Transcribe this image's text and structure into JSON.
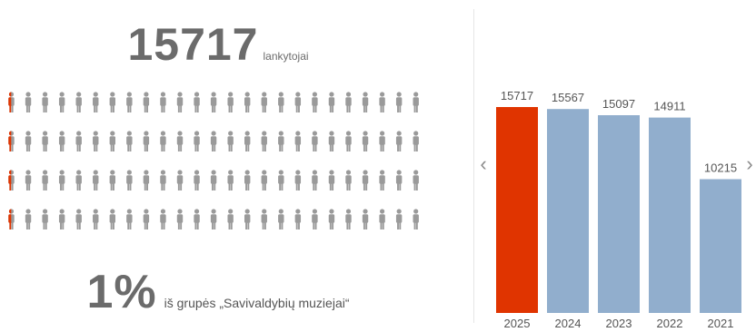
{
  "summary": {
    "total_visitors": "15717",
    "total_label": "lankytojai",
    "share_percent": "1%",
    "share_label": "iš grupės „Savivaldybių muziejai“"
  },
  "people_grid": {
    "rows": 4,
    "columns": 25,
    "highlight_fraction_of_first_icon": 0.4,
    "icon_color": "#9a9a9a",
    "highlight_color": "#e03400"
  },
  "navigation": {
    "prev_icon": "chevron-left-icon",
    "prev_symbol": "‹",
    "next_icon": "chevron-right-icon",
    "next_symbol": "›"
  },
  "chart_data": {
    "type": "bar",
    "categories": [
      "2025",
      "2024",
      "2023",
      "2022",
      "2021"
    ],
    "values": [
      15717,
      15567,
      15097,
      14911,
      10215
    ],
    "ylim": [
      0,
      15717
    ],
    "colors": [
      "#e03400",
      "#91aecd",
      "#91aecd",
      "#91aecd",
      "#91aecd"
    ],
    "grid": false,
    "legend": "none",
    "title": "",
    "xlabel": "",
    "ylabel": ""
  }
}
